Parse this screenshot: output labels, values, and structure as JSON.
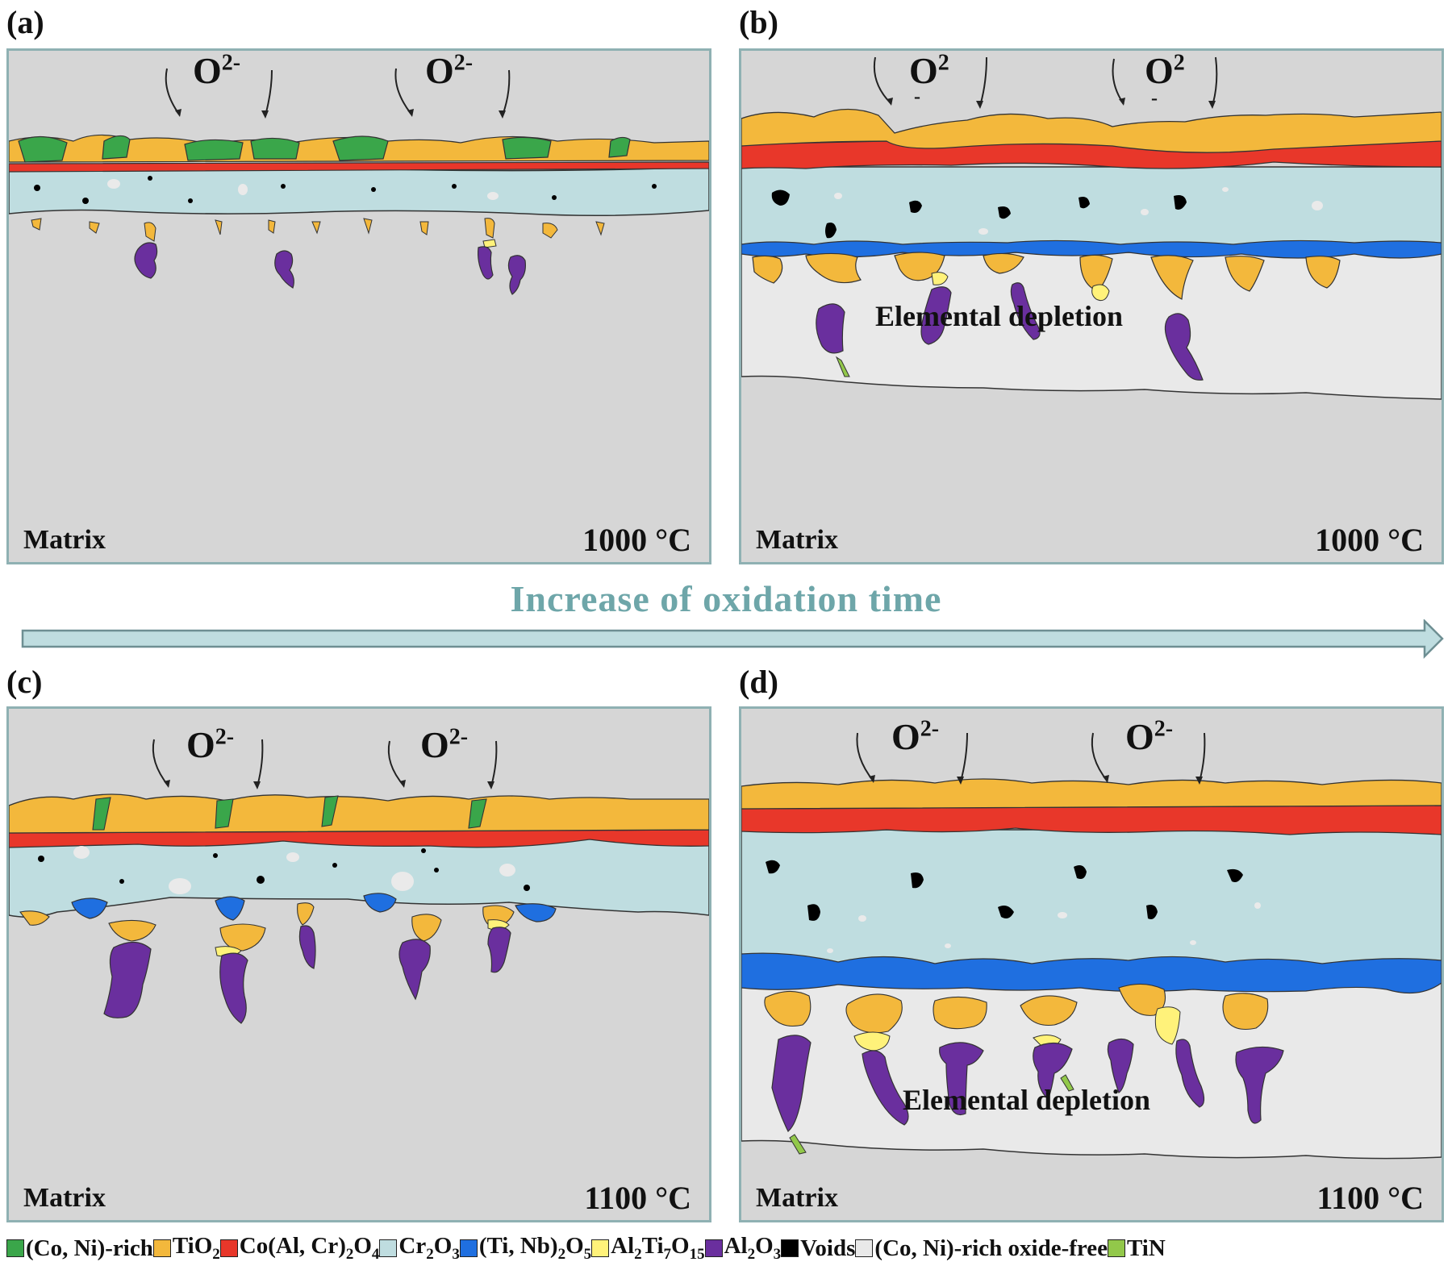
{
  "panels": {
    "a": {
      "label": "(a)",
      "oxygen": "O",
      "oxygen_charge": "2-",
      "matrix": "Matrix",
      "temperature": "1000 °C"
    },
    "b": {
      "label": "(b)",
      "oxygen": "O",
      "oxygen_charge": "2",
      "matrix": "Matrix",
      "temperature": "1000 °C",
      "depletion": "Elemental depletion"
    },
    "c": {
      "label": "(c)",
      "oxygen": "O",
      "oxygen_charge": "2-",
      "matrix": "Matrix",
      "temperature": "1100 °C"
    },
    "d": {
      "label": "(d)",
      "oxygen": "O",
      "oxygen_charge": "2-",
      "matrix": "Matrix",
      "temperature": "1100 °C",
      "depletion": "Elemental depletion"
    }
  },
  "time_axis_label": "Increase of oxidation time",
  "colors": {
    "co_ni_rich": "#3aa64a",
    "tio2": "#f3b83c",
    "spinel": "#e8372a",
    "cr2o3": "#bfdde0",
    "ti_nb_oxide": "#1f6fe0",
    "al2ti7o15": "#fff27a",
    "al2o3": "#6a2f9e",
    "voids": "#000000",
    "oxide_free": "#e9e9e9",
    "tin": "#92c84a",
    "matrix_bg": "#d6d6d6",
    "frame": "#8fb1b3",
    "arrow": "#6ea6a9"
  },
  "legend": [
    {
      "name": "(Co, Ni)-rich",
      "color": "#3aa64a"
    },
    {
      "name": "TiO2",
      "color": "#f3b83c"
    },
    {
      "name": "Co(Al, Cr)2O4",
      "color": "#e8372a"
    },
    {
      "name": "Cr2O3",
      "color": "#bfdde0"
    },
    {
      "name": "(Ti, Nb)2O5",
      "color": "#1f6fe0"
    },
    {
      "name": "Al2Ti7O15",
      "color": "#fff27a"
    },
    {
      "name": "Al2O3",
      "color": "#6a2f9e"
    },
    {
      "name": "Voids",
      "color": "#000000"
    },
    {
      "name": "(Co, Ni)-rich oxide-free",
      "color": "#e9e9e9"
    },
    {
      "name": "TiN",
      "color": "#92c84a"
    }
  ]
}
